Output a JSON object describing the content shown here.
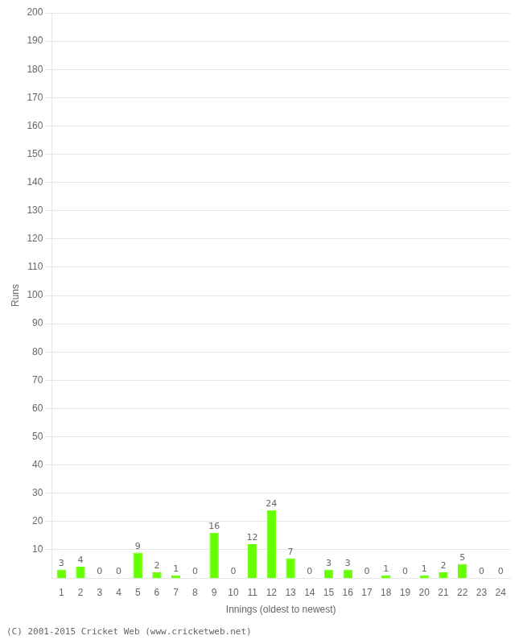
{
  "chart_data": {
    "type": "bar",
    "categories": [
      "1",
      "2",
      "3",
      "4",
      "5",
      "6",
      "7",
      "8",
      "9",
      "10",
      "11",
      "12",
      "13",
      "14",
      "15",
      "16",
      "17",
      "18",
      "19",
      "20",
      "21",
      "22",
      "23",
      "24"
    ],
    "values": [
      3,
      4,
      0,
      0,
      9,
      2,
      1,
      0,
      16,
      0,
      12,
      24,
      7,
      0,
      3,
      3,
      0,
      1,
      0,
      1,
      2,
      5,
      0,
      0
    ],
    "color": "#66ff00",
    "xlabel": "Innings (oldest to newest)",
    "ylabel": "Runs",
    "ylim": [
      0,
      200
    ],
    "yticks": [
      10,
      20,
      30,
      40,
      50,
      60,
      70,
      80,
      90,
      100,
      110,
      120,
      130,
      140,
      150,
      160,
      170,
      180,
      190,
      200
    ],
    "grid": true,
    "data_labels": true,
    "annotations": [
      "(C) 2001-2015 Cricket Web (www.cricketweb.net)"
    ]
  }
}
